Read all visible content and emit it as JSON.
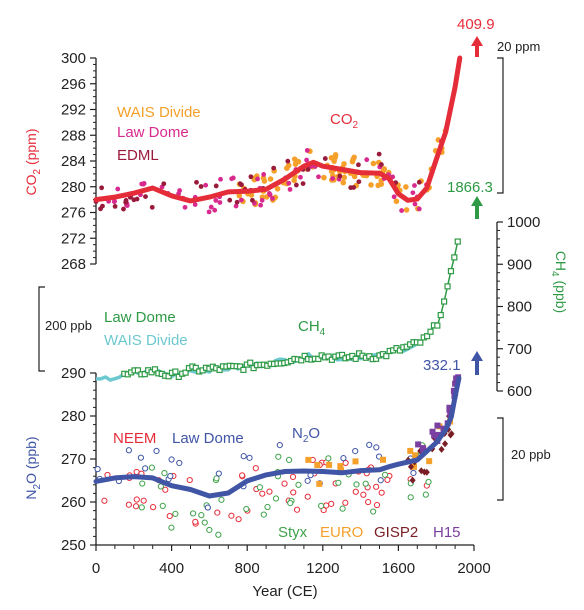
{
  "chart_data": [
    {
      "type": "scatter",
      "panel": "co2",
      "ylabel": "CO2 (ppm)",
      "ylabel_main": "CO",
      "ylabel_sub": "2",
      "ylabel_unit": " (ppm)",
      "ylim": [
        268,
        300
      ],
      "yticks": [
        268,
        272,
        276,
        280,
        284,
        288,
        292,
        296,
        300
      ],
      "series_label_main": "CO",
      "series_label_sub": "2",
      "latest_value": "409.9",
      "scale_bar_label": "20 ppm",
      "legend": [
        "WAIS Divide",
        "Law Dome",
        "EDML"
      ],
      "colors": {
        "fit": "#e52d3a",
        "wais": "#f5a02a",
        "lawdome": "#d82a8e",
        "edml": "#9a1a3b"
      },
      "fit_line": {
        "x": [
          0,
          100,
          200,
          300,
          400,
          500,
          600,
          700,
          800,
          900,
          1000,
          1100,
          1150,
          1200,
          1300,
          1400,
          1500,
          1550,
          1600,
          1650,
          1700,
          1750,
          1800,
          1850,
          1900,
          1925
        ],
        "y": [
          278,
          278.4,
          279,
          279.8,
          278.6,
          277.8,
          278.4,
          279.2,
          279.3,
          279.6,
          281.2,
          283.2,
          283.8,
          283.2,
          282.7,
          282.2,
          282.1,
          281.3,
          278.9,
          277.9,
          278.1,
          279.8,
          284.2,
          288.5,
          295.5,
          300
        ]
      }
    },
    {
      "type": "scatter",
      "panel": "ch4",
      "ylabel": "CH4 (ppb)",
      "ylabel_main": "CH",
      "ylabel_sub": "4",
      "ylabel_unit": " (ppb)",
      "ylim": [
        600,
        1000
      ],
      "yticks": [
        600,
        700,
        800,
        900,
        1000
      ],
      "series_label_main": "CH",
      "series_label_sub": "4",
      "latest_value": "1866.3",
      "scale_bar_label": "200 ppb",
      "legend": [
        "Law Dome",
        "WAIS Divide"
      ],
      "colors": {
        "lawdome": "#2e9a45",
        "wais": "#6cc9d0"
      },
      "x": [
        0,
        100,
        200,
        300,
        400,
        500,
        600,
        700,
        800,
        900,
        1000,
        1100,
        1200,
        1300,
        1400,
        1500,
        1600,
        1700,
        1750,
        1800,
        1850,
        1880,
        1900,
        1925
      ],
      "y": [
        622,
        632,
        641,
        648,
        636,
        650,
        652,
        654,
        658,
        665,
        672,
        680,
        683,
        678,
        683,
        682,
        697,
        712,
        725,
        755,
        820,
        880,
        930,
        985
      ]
    },
    {
      "type": "scatter",
      "panel": "n2o",
      "ylabel": "N2O (ppb)",
      "ylabel_main": "N",
      "ylabel_sub": "2",
      "ylabel_unit": "O (ppb)",
      "ylim": [
        250,
        290
      ],
      "yticks": [
        250,
        260,
        270,
        280,
        290
      ],
      "xlabel": "Year (CE)",
      "xlim": [
        0,
        2000
      ],
      "xticks": [
        0,
        400,
        800,
        1200,
        1600,
        2000
      ],
      "series_label_main": "N",
      "series_label_sub": "2",
      "series_label_unit": "O",
      "latest_value": "332.1",
      "scale_bar_label": "20 ppb",
      "legend": [
        "NEEM",
        "Law Dome",
        "Styx",
        "EURO",
        "GISP2",
        "H15"
      ],
      "colors": {
        "neem": "#e52d3a",
        "lawdome": "#4055a6",
        "styx": "#3fa24b",
        "euro": "#f5a02a",
        "gisp2": "#7a1e25",
        "h15": "#7a3fa0"
      },
      "fit_line": {
        "x": [
          0,
          100,
          200,
          300,
          400,
          500,
          600,
          700,
          800,
          900,
          1000,
          1100,
          1200,
          1300,
          1400,
          1500,
          1550,
          1600,
          1700,
          1750,
          1800,
          1850,
          1880,
          1900,
          1920
        ],
        "y": [
          264.8,
          265.6,
          265.9,
          265.6,
          263.8,
          262.9,
          261.4,
          262.1,
          264.9,
          266.3,
          267.1,
          267.2,
          267.1,
          266.8,
          267.3,
          267.5,
          268.2,
          268.8,
          269.8,
          271.8,
          273.8,
          276.8,
          279.8,
          284.5,
          288.8
        ]
      }
    }
  ]
}
